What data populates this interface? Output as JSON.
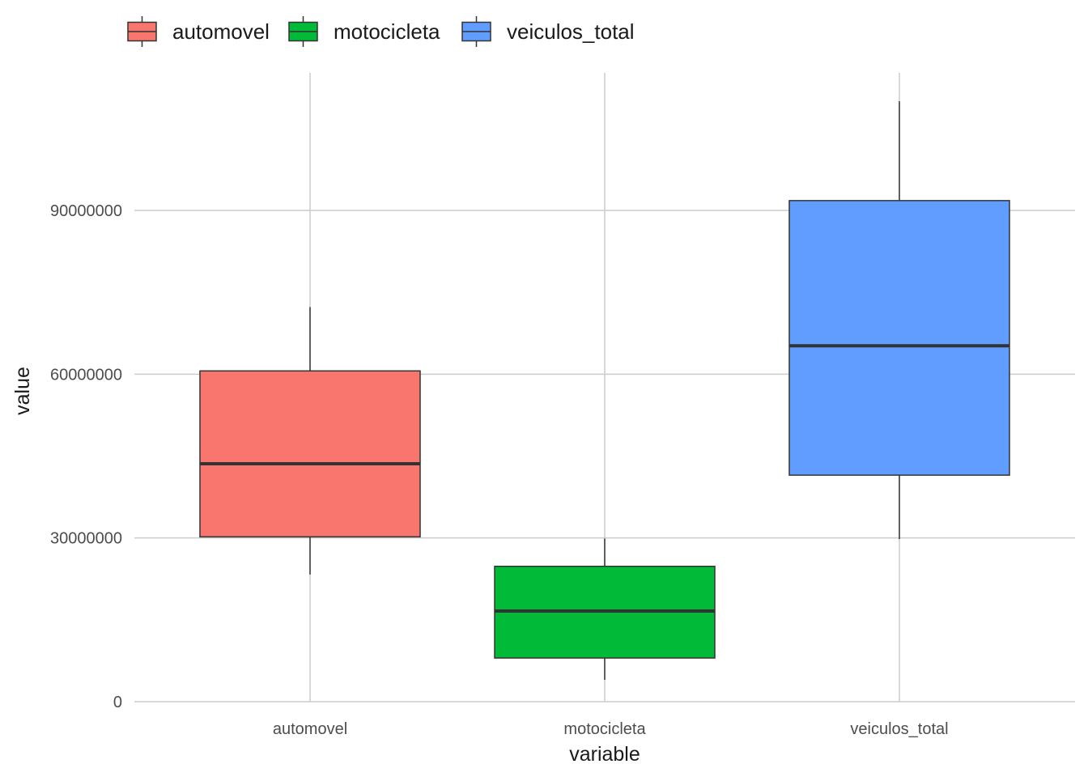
{
  "chart_data": {
    "type": "boxplot",
    "title": "",
    "xlabel": "variable",
    "ylabel": "value",
    "ylim": [
      0,
      110000000
    ],
    "yticks": [
      0,
      30000000,
      60000000,
      90000000
    ],
    "ytick_labels": [
      "0",
      "30000000",
      "60000000",
      "90000000"
    ],
    "grid": true,
    "legend_position": "top-left",
    "categories": [
      "automovel",
      "motocicleta",
      "veiculos_total"
    ],
    "series": [
      {
        "name": "automovel",
        "color": "#F8766D",
        "whisker_low": 23300000,
        "q1": 30200000,
        "median": 43600000,
        "q3": 60600000,
        "whisker_high": 72300000
      },
      {
        "name": "motocicleta",
        "color": "#00BA38",
        "whisker_low": 4000000,
        "q1": 8000000,
        "median": 16600000,
        "q3": 24800000,
        "whisker_high": 29900000
      },
      {
        "name": "veiculos_total",
        "color": "#619CFF",
        "whisker_low": 29800000,
        "q1": 41500000,
        "median": 65200000,
        "q3": 91800000,
        "whisker_high": 110000000
      }
    ]
  }
}
